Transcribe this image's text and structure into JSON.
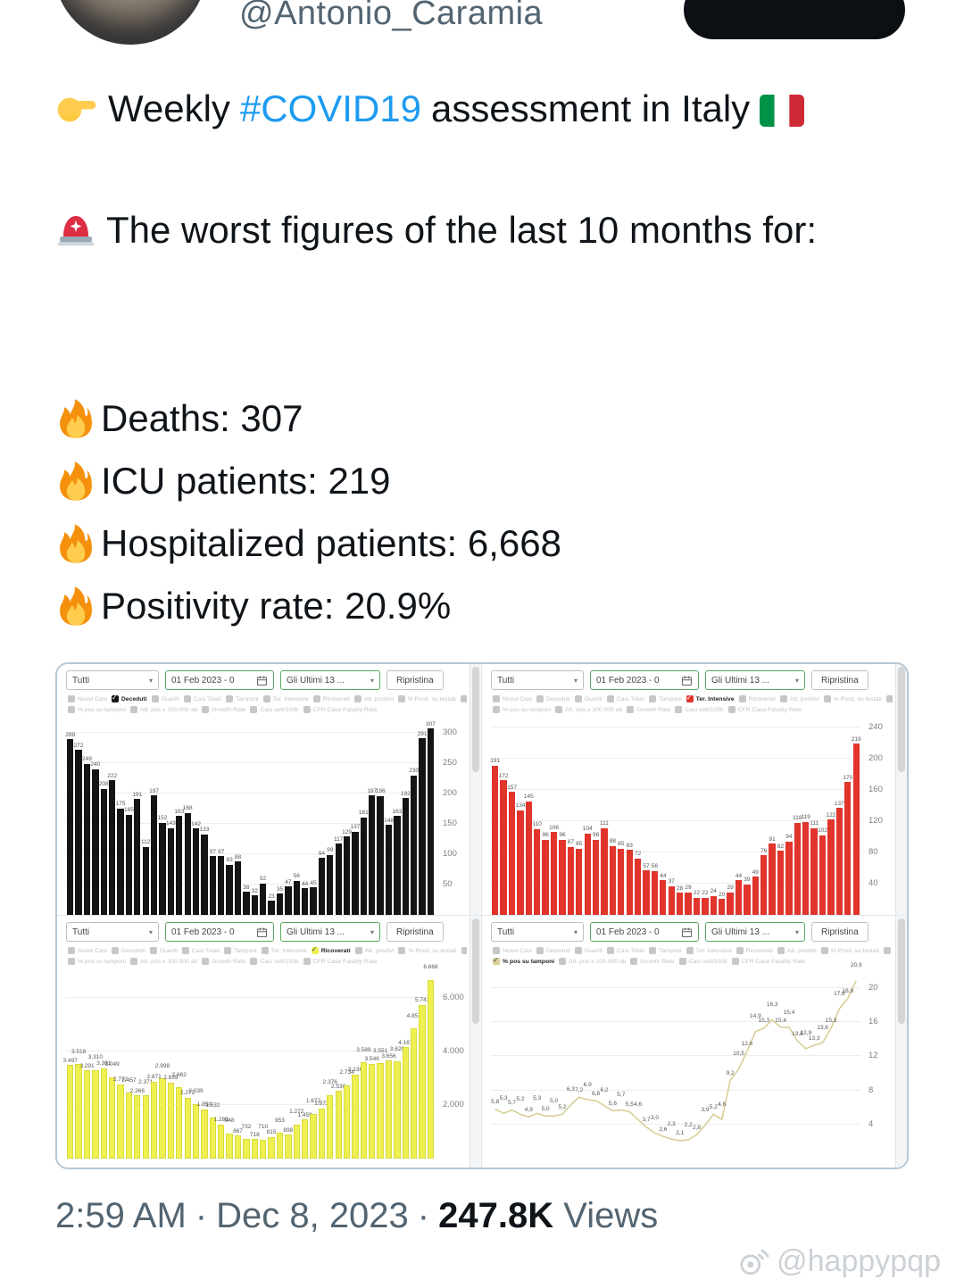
{
  "header": {
    "username": "@Antonio_Caramia"
  },
  "tweet": {
    "intro_pre": "Weekly",
    "hashtag": "#COVID19",
    "intro_post": "assessment in Italy",
    "alert_text": "The worst figures of the last 10 months for:",
    "stats": [
      {
        "text": "Deaths: 307"
      },
      {
        "text": "ICU patients: 219"
      },
      {
        "text": "Hospitalized patients: 6,668"
      },
      {
        "text": "Positivity rate: 20.9%"
      }
    ]
  },
  "colors": {
    "hashtag": "#1d9bf0"
  },
  "icons": {
    "hand": "pointing-right-hand",
    "siren": "police-rotating-light",
    "fire": "fire-flame",
    "flag": "italy-flag",
    "calendar": "calendar",
    "watermark_logo": "weibo-logo"
  },
  "dashboard": {
    "toolbar": {
      "filter": "Tutti",
      "date_range": "01 Feb 2023 - 0",
      "period": "Gli Ultimi 13 ...",
      "reset": "Ripristina"
    },
    "legend_row1": [
      "Nuovi Casi",
      "Deceduti",
      "Guariti",
      "Casi Totali",
      "Tamponi",
      "Ter. Intensive",
      "Ricoverati",
      "Att. positivi",
      "% Posit. su testati",
      "Casi giorn. x 100k"
    ],
    "legend_row2": [
      "% pos su tamponi",
      "Att. pos x 100.000 ab",
      "Growth Rate",
      "Casi sett/100k",
      "CFR Case Fatality Rate"
    ]
  },
  "footer": {
    "time": "2:59 AM",
    "date": "Dec 8, 2023",
    "views_count": "247.8K",
    "views_label": "Views",
    "sep": "·"
  },
  "watermark": "@happypqp",
  "chart_data": [
    {
      "id": "deaths",
      "type": "bar",
      "title": "Deceduti",
      "active": "Deceduti",
      "color": "#141414",
      "ymax": 322,
      "yticks": [
        50,
        100,
        150,
        200,
        250,
        300
      ],
      "ytick_labels": [
        "50",
        "100",
        "150",
        "200",
        "250",
        "300"
      ],
      "values": [
        289,
        272,
        249,
        240,
        208,
        222,
        175,
        165,
        191,
        112,
        197,
        152,
        143,
        163,
        168,
        142,
        133,
        97,
        97,
        83,
        88,
        38,
        32,
        52,
        23,
        35,
        47,
        56,
        44,
        45,
        94,
        99,
        117,
        129,
        137,
        161,
        197,
        196,
        148,
        163,
        192,
        230,
        291,
        307
      ]
    },
    {
      "id": "icu",
      "type": "bar",
      "title": "Ter. Intensive",
      "active": "Ter. Intensive",
      "color": "#e1342b",
      "ymax": 250,
      "yticks": [
        40,
        80,
        120,
        160,
        200,
        240
      ],
      "ytick_labels": [
        "40",
        "80",
        "120",
        "160",
        "200",
        "240"
      ],
      "values": [
        191,
        172,
        157,
        134,
        145,
        110,
        96,
        106,
        96,
        87,
        85,
        104,
        96,
        111,
        88,
        85,
        83,
        72,
        57,
        56,
        44,
        37,
        28,
        29,
        22,
        22,
        24,
        20,
        29,
        44,
        39,
        49,
        76,
        91,
        82,
        94,
        118,
        119,
        111,
        102,
        122,
        137,
        170,
        219
      ]
    },
    {
      "id": "hospitalized",
      "type": "bar",
      "title": "Ricoverati",
      "active": "Ricoverati",
      "color": "#eef052",
      "bar_border": "#d9dc37",
      "check_dark": true,
      "stagger": 10,
      "ymax": 7000,
      "yticks": [
        2000,
        4000,
        6000
      ],
      "ytick_labels": [
        "2.000",
        "4.000",
        "6.000"
      ],
      "values": [
        3497,
        3518,
        3291,
        3310,
        3381,
        3049,
        2772,
        2457,
        2366,
        2371,
        2871,
        2998,
        2839,
        2662,
        2272,
        2039,
        1850,
        1532,
        1283,
        948,
        867,
        732,
        718,
        710,
        815,
        953,
        898,
        1272,
        1459,
        1672,
        1872,
        2376,
        2530,
        2734,
        3136,
        3589,
        3546,
        3551,
        3656,
        3620,
        4167,
        4851,
        5741,
        6668
      ],
      "value_labels": [
        "3.497",
        "3.518",
        "3.291",
        "3.310",
        "3.381",
        "3.049",
        "2.772",
        "2.457",
        "2.366",
        "2.371",
        "2.871",
        "2.998",
        "2.839",
        "2.662",
        "2.272",
        "2.039",
        "1.850",
        "1.532",
        "1.283",
        "948",
        "867",
        "732",
        "718",
        "710",
        "815",
        "953",
        "898",
        "1.272",
        "1.459",
        "1.672",
        "1.872",
        "2.376",
        "2.530",
        "2.734",
        "3.136",
        "3.589",
        "3.546",
        "3.551",
        "3.656",
        "3.620",
        "4.167",
        "4.851",
        "5.741",
        "6.668"
      ]
    },
    {
      "id": "positivity",
      "type": "line",
      "title": "% pos su tamponi",
      "active": "% pos su tamponi",
      "color": "#d8cf97",
      "check_dark": true,
      "ymax": 22,
      "yticks": [
        4,
        8,
        12,
        16,
        20
      ],
      "ytick_labels": [
        "4",
        "8",
        "12",
        "16",
        "20"
      ],
      "values": [
        5.8,
        5.3,
        5.7,
        5.2,
        4.9,
        5.3,
        5.0,
        5.0,
        5.2,
        6.3,
        7.2,
        6.9,
        6.8,
        6.2,
        5.6,
        5.7,
        5.5,
        4.6,
        3.7,
        3.0,
        2.6,
        2.3,
        2.1,
        2.2,
        2.8,
        3.9,
        5.2,
        4.6,
        9.2,
        10.5,
        12.6,
        14.9,
        15.3,
        16.3,
        15.4,
        15.4,
        13.8,
        12.9,
        13.3,
        13.6,
        15.3,
        17.6,
        18.8,
        20.9
      ],
      "value_labels": [
        "5,8",
        "5,3",
        "5,7",
        "5,2",
        "4,9",
        "5,3",
        "5,0",
        "5,0",
        "5,2",
        "6,3",
        "7,2",
        "6,9",
        "6,8",
        "6,2",
        "5,6",
        "5,7",
        "5,5",
        "4,6",
        "3,7",
        "3,0",
        "2,6",
        "2,3",
        "2,1",
        "2,2",
        "2,8",
        "3,9",
        "5,2",
        "4,6",
        "9,2",
        "10,5",
        "12,6",
        "14,9",
        "15,3",
        "16,3",
        "15,4",
        "15,4",
        "13,8",
        "12,9",
        "13,3",
        "13,6",
        "15,3",
        "17,6",
        "18,8",
        "20,9"
      ]
    }
  ]
}
